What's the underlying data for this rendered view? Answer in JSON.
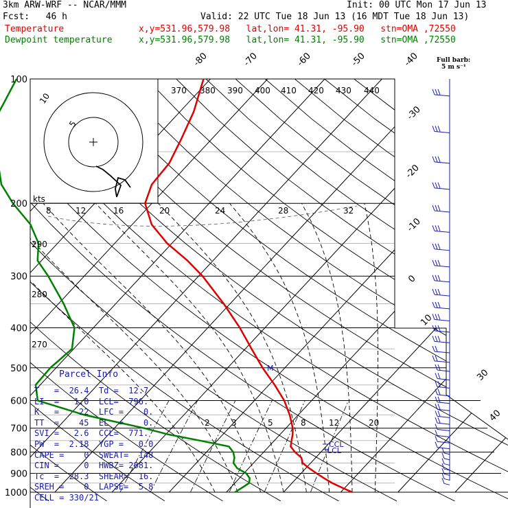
{
  "header": {
    "model": "3km ARW-WRF -- NCAR/MMM",
    "init": "Init: 00 UTC Mon 17 Jun 13",
    "fcst": "Fcst:   46 h",
    "valid": "Valid: 22 UTC Tue 18 Jun 13 (16 MDT Tue 18 Jun 13)",
    "temp_label": "Temperature",
    "temp_info": "x,y=531.96,579.98   lat,lon= 41.31, -95.90   stn=OMA ,72550",
    "dew_label": "Dewpoint temperature",
    "dew_info": "x,y=531.96,579.98   lat,lon= 41.31, -95.90   stn=OMA ,72550"
  },
  "wind_legend": {
    "line1": "Full barb:",
    "line2": "5 m s⁻¹"
  },
  "hodograph": {
    "unit": "kts",
    "ring_label_1": "5",
    "ring_label_2": "10",
    "speed_ticks": [
      "8",
      "12",
      "16",
      "20",
      "24",
      "28",
      "32"
    ]
  },
  "parcel": {
    "title": "Parcel Info",
    "rows": [
      "T   =  26.4  Td =  12.7",
      "LI  =   1.0  LCL=  796.",
      "K   =    22  LFC =    0.",
      "TT  =    45  EL  =    0.",
      "SVI =   2.6  CCL=  771.",
      "PW  =  2.18  YGP =   0.0",
      "CAPE =    0  SWEAT=  148",
      "CIN =     0  HWBZ= 2881.",
      "Tc  =  28.3  SHEAR=  16.",
      "SREH =    0  LAPSE=  5.8",
      "CELL = 330/21"
    ]
  },
  "annotations": {
    "lcl": "LCL",
    "ccl": "CCL",
    "m_marker": "M"
  },
  "colors": {
    "temperature": "#e00000",
    "dewpoint": "#008000",
    "wind": "#1a1aa6",
    "grid": "#000000"
  },
  "chart_data": {
    "type": "line",
    "title": "",
    "ylabel": "",
    "xlabel": "",
    "y_scale": "log-pressure",
    "ylim": [
      1000,
      100
    ],
    "pressure_ticks": [
      100,
      200,
      300,
      400,
      500,
      600,
      700,
      800,
      900,
      1000
    ],
    "isotherm_labels": [
      "-80",
      "-70",
      "-60",
      "-50",
      "-40",
      "-30",
      "-20",
      "-10",
      "0",
      "10",
      "30",
      "40"
    ],
    "theta_labels": [
      "370",
      "380",
      "390",
      "400",
      "410",
      "420",
      "430",
      "440",
      "290",
      "280",
      "270"
    ],
    "mixing_ratio_labels": [
      "2",
      "3",
      "5",
      "8",
      "12",
      "20"
    ],
    "series": [
      {
        "name": "Temperature",
        "p": [
          1000,
          975,
          950,
          925,
          900,
          875,
          850,
          825,
          800,
          775,
          750,
          725,
          700,
          650,
          600,
          550,
          500,
          450,
          400,
          350,
          300,
          275,
          250,
          225,
          200,
          180,
          160,
          140,
          120,
          100
        ],
        "t": [
          32.0,
          29.5,
          27.0,
          24.8,
          22.7,
          20.6,
          18.6,
          17.5,
          15.5,
          13.8,
          13.0,
          12.2,
          11.2,
          8.5,
          5.2,
          1.0,
          -3.9,
          -8.9,
          -14.4,
          -21.1,
          -29.3,
          -34.5,
          -40.8,
          -46.6,
          -51.2,
          -53.1,
          -53.5,
          -55.3,
          -57.6,
          -61.2
        ]
      },
      {
        "name": "Dewpoint temperature",
        "p": [
          1000,
          975,
          950,
          925,
          900,
          875,
          850,
          825,
          800,
          775,
          750,
          725,
          700,
          650,
          600,
          550,
          500,
          450,
          400,
          350,
          300,
          275,
          250,
          225,
          200,
          180,
          160,
          140,
          120,
          100
        ],
        "t": [
          11.5,
          12.0,
          12.5,
          11.8,
          10.4,
          8.0,
          6.5,
          5.8,
          4.7,
          3.0,
          -3.0,
          -9.5,
          -14.8,
          -27.4,
          -37.9,
          -40.8,
          -41.0,
          -40.3,
          -43.3,
          -49.1,
          -56.3,
          -60.7,
          -63.3,
          -67.8,
          -74.3,
          -79.4,
          -83.4,
          -87.6,
          -91.6,
          -93.9
        ]
      }
    ]
  }
}
